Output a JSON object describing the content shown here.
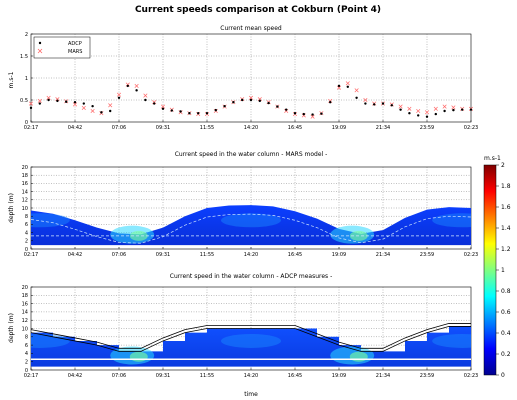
{
  "figure": {
    "title": "Current speeds comparison at Cokburn (Point 4)",
    "xlabel": "time"
  },
  "chart_data": [
    {
      "type": "scatter",
      "title": "Current mean speed",
      "xlabel": "",
      "ylabel": "m.s-1",
      "ylim": [
        0,
        2
      ],
      "yticks": [
        0,
        0.5,
        1,
        1.5,
        2
      ],
      "xticks": [
        "02:17",
        "04:42",
        "07:06",
        "09:31",
        "11:55",
        "14:20",
        "16:45",
        "19:09",
        "21:34",
        "23:59",
        "02:23"
      ],
      "grid": true,
      "legend_position": "top-left",
      "series": [
        {
          "name": "ADCP",
          "marker": "dot",
          "color": "#000000",
          "x": [
            0.0,
            0.2,
            0.4,
            0.6,
            0.8,
            1.0,
            1.2,
            1.4,
            1.6,
            1.8,
            2.0,
            2.2,
            2.4,
            2.6,
            2.8,
            3.0,
            3.2,
            3.4,
            3.6,
            3.8,
            4.0,
            4.2,
            4.4,
            4.6,
            4.8,
            5.0,
            5.2,
            5.4,
            5.6,
            5.8,
            6.0,
            6.2,
            6.4,
            6.6,
            6.8,
            7.0,
            7.2,
            7.4,
            7.6,
            7.8,
            8.0,
            8.2,
            8.4,
            8.6,
            8.8,
            9.0,
            9.2,
            9.4,
            9.6,
            9.8,
            10.0
          ],
          "y": [
            0.32,
            0.42,
            0.5,
            0.48,
            0.46,
            0.45,
            0.42,
            0.36,
            0.22,
            0.25,
            0.55,
            0.82,
            0.72,
            0.5,
            0.42,
            0.3,
            0.26,
            0.24,
            0.2,
            0.2,
            0.2,
            0.27,
            0.36,
            0.45,
            0.5,
            0.5,
            0.48,
            0.43,
            0.35,
            0.28,
            0.2,
            0.18,
            0.17,
            0.19,
            0.45,
            0.82,
            0.8,
            0.55,
            0.42,
            0.4,
            0.42,
            0.38,
            0.28,
            0.2,
            0.15,
            0.12,
            0.18,
            0.25,
            0.27,
            0.28,
            0.28
          ]
        },
        {
          "name": "MARS",
          "marker": "x",
          "color": "#ff6666",
          "x": [
            0.0,
            0.2,
            0.4,
            0.6,
            0.8,
            1.0,
            1.2,
            1.4,
            1.6,
            1.8,
            2.0,
            2.2,
            2.4,
            2.6,
            2.8,
            3.0,
            3.2,
            3.4,
            3.6,
            3.8,
            4.0,
            4.2,
            4.4,
            4.6,
            4.8,
            5.0,
            5.2,
            5.4,
            5.6,
            5.8,
            6.0,
            6.2,
            6.4,
            6.6,
            6.8,
            7.0,
            7.2,
            7.4,
            7.6,
            7.8,
            8.0,
            8.2,
            8.4,
            8.6,
            8.8,
            9.0,
            9.2,
            9.4,
            9.6,
            9.8,
            10.0
          ],
          "y": [
            0.42,
            0.48,
            0.55,
            0.52,
            0.47,
            0.4,
            0.32,
            0.25,
            0.2,
            0.38,
            0.62,
            0.85,
            0.82,
            0.6,
            0.45,
            0.35,
            0.28,
            0.22,
            0.2,
            0.18,
            0.18,
            0.25,
            0.35,
            0.45,
            0.52,
            0.55,
            0.52,
            0.45,
            0.35,
            0.25,
            0.18,
            0.15,
            0.12,
            0.2,
            0.48,
            0.78,
            0.88,
            0.72,
            0.5,
            0.42,
            0.42,
            0.4,
            0.35,
            0.3,
            0.25,
            0.22,
            0.3,
            0.35,
            0.33,
            0.3,
            0.3
          ]
        }
      ]
    },
    {
      "type": "heatmap",
      "title": "Current speed in the water column - MARS model -",
      "ylabel": "depth (m)",
      "ylim": [
        0,
        20
      ],
      "yticks": [
        0,
        2,
        4,
        6,
        8,
        10,
        12,
        14,
        16,
        18,
        20
      ],
      "xticks": [
        "02:17",
        "04:42",
        "07:06",
        "09:31",
        "11:55",
        "14:20",
        "16:45",
        "19:09",
        "21:34",
        "23:59",
        "02:23"
      ],
      "grid": true,
      "surface_depth": {
        "x": [
          0,
          0.5,
          1,
          1.5,
          2,
          2.5,
          3,
          3.5,
          4,
          4.5,
          5,
          5.5,
          6,
          6.5,
          7,
          7.5,
          8,
          8.5,
          9,
          9.5,
          10
        ],
        "y": [
          9.4,
          8.6,
          7.0,
          5.2,
          3.8,
          3.6,
          5.2,
          8.0,
          10.0,
          10.6,
          10.7,
          10.4,
          9.2,
          7.4,
          4.9,
          3.7,
          4.6,
          7.6,
          9.6,
          10.2,
          10.0
        ]
      },
      "dashed_lines": [
        3.2,
        "follows surface"
      ]
    },
    {
      "type": "heatmap",
      "title": "Current speed in the water column - ADCP measures -",
      "ylabel": "depth (m)",
      "ylim": [
        0,
        20
      ],
      "yticks": [
        0,
        2,
        4,
        6,
        8,
        10,
        12,
        14,
        16,
        18,
        20
      ],
      "xticks": [
        "02:17",
        "04:42",
        "07:06",
        "09:31",
        "11:55",
        "14:20",
        "16:45",
        "19:09",
        "21:34",
        "23:59",
        "02:23"
      ],
      "xlabel": "time",
      "grid": true,
      "surface_depth": {
        "x": [
          0,
          0.5,
          1,
          1.5,
          2,
          2.5,
          3,
          3.5,
          4,
          4.5,
          5,
          5.5,
          6,
          6.5,
          7,
          7.5,
          8,
          8.5,
          9,
          9.5,
          10
        ],
        "y": [
          9.0,
          8.0,
          7.0,
          6.0,
          4.5,
          4.5,
          7.0,
          9.0,
          10.0,
          10.0,
          10.0,
          10.0,
          10.0,
          8.0,
          6.0,
          4.5,
          4.5,
          7.0,
          9.0,
          10.5,
          10.5
        ]
      }
    }
  ],
  "colorbar": {
    "unit": "m.s-1",
    "ticks": [
      0,
      0.2,
      0.4,
      0.6,
      0.8,
      1,
      1.2,
      1.4,
      1.6,
      1.8,
      2
    ],
    "colors": [
      "#00008f",
      "#0000ff",
      "#0080ff",
      "#00ffff",
      "#80ff80",
      "#ffff00",
      "#ff8000",
      "#ff0000",
      "#800000"
    ]
  }
}
